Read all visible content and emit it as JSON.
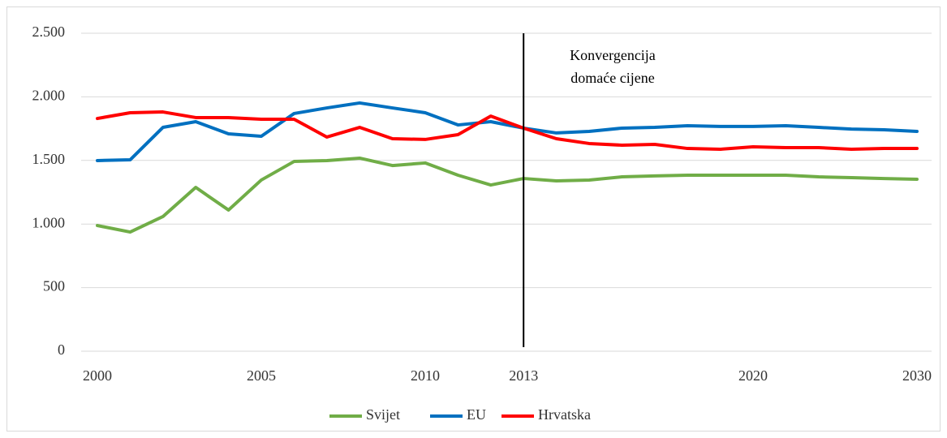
{
  "chart_data": {
    "type": "line",
    "categories": [
      "2000",
      null,
      null,
      null,
      null,
      "2005",
      null,
      null,
      null,
      null,
      "2010",
      null,
      null,
      "2013",
      null,
      null,
      null,
      null,
      null,
      null,
      "2020",
      null,
      null,
      null,
      null,
      "2030"
    ],
    "series": [
      {
        "name": "Svijet",
        "color": "#70ad47",
        "values": [
          988,
          937,
          1059,
          1288,
          1110,
          1346,
          1492,
          1499,
          1518,
          1460,
          1480,
          1384,
          1307,
          1358,
          1339,
          1346,
          1371,
          1378,
          1384,
          1384,
          1384,
          1384,
          1371,
          1365,
          1358,
          1352
        ]
      },
      {
        "name": "EU",
        "color": "#0070c0",
        "values": [
          1499,
          1505,
          1760,
          1805,
          1709,
          1690,
          1869,
          1913,
          1952,
          1913,
          1875,
          1779,
          1805,
          1754,
          1716,
          1728,
          1754,
          1760,
          1773,
          1767,
          1767,
          1773,
          1760,
          1747,
          1741,
          1728
        ]
      },
      {
        "name": "Hrvatska",
        "color": "#ff0000",
        "values": [
          1830,
          1875,
          1881,
          1837,
          1837,
          1824,
          1824,
          1684,
          1760,
          1671,
          1665,
          1703,
          1849,
          1754,
          1671,
          1633,
          1620,
          1626,
          1594,
          1588,
          1607,
          1601,
          1601,
          1588,
          1594,
          1594
        ]
      }
    ],
    "ylim": [
      0,
      2500
    ],
    "yticks": [
      0,
      500,
      {
        "value": 1000,
        "label": "1.000"
      },
      {
        "value": 1500,
        "label": "1.500"
      },
      {
        "value": 2000,
        "label": "2.000"
      },
      {
        "value": 2500,
        "label": "2.500"
      }
    ],
    "grid": true,
    "legend": "bottom",
    "annotation": {
      "x": "2013",
      "lines": [
        "Konvergencija",
        "domaće cijene"
      ]
    }
  }
}
